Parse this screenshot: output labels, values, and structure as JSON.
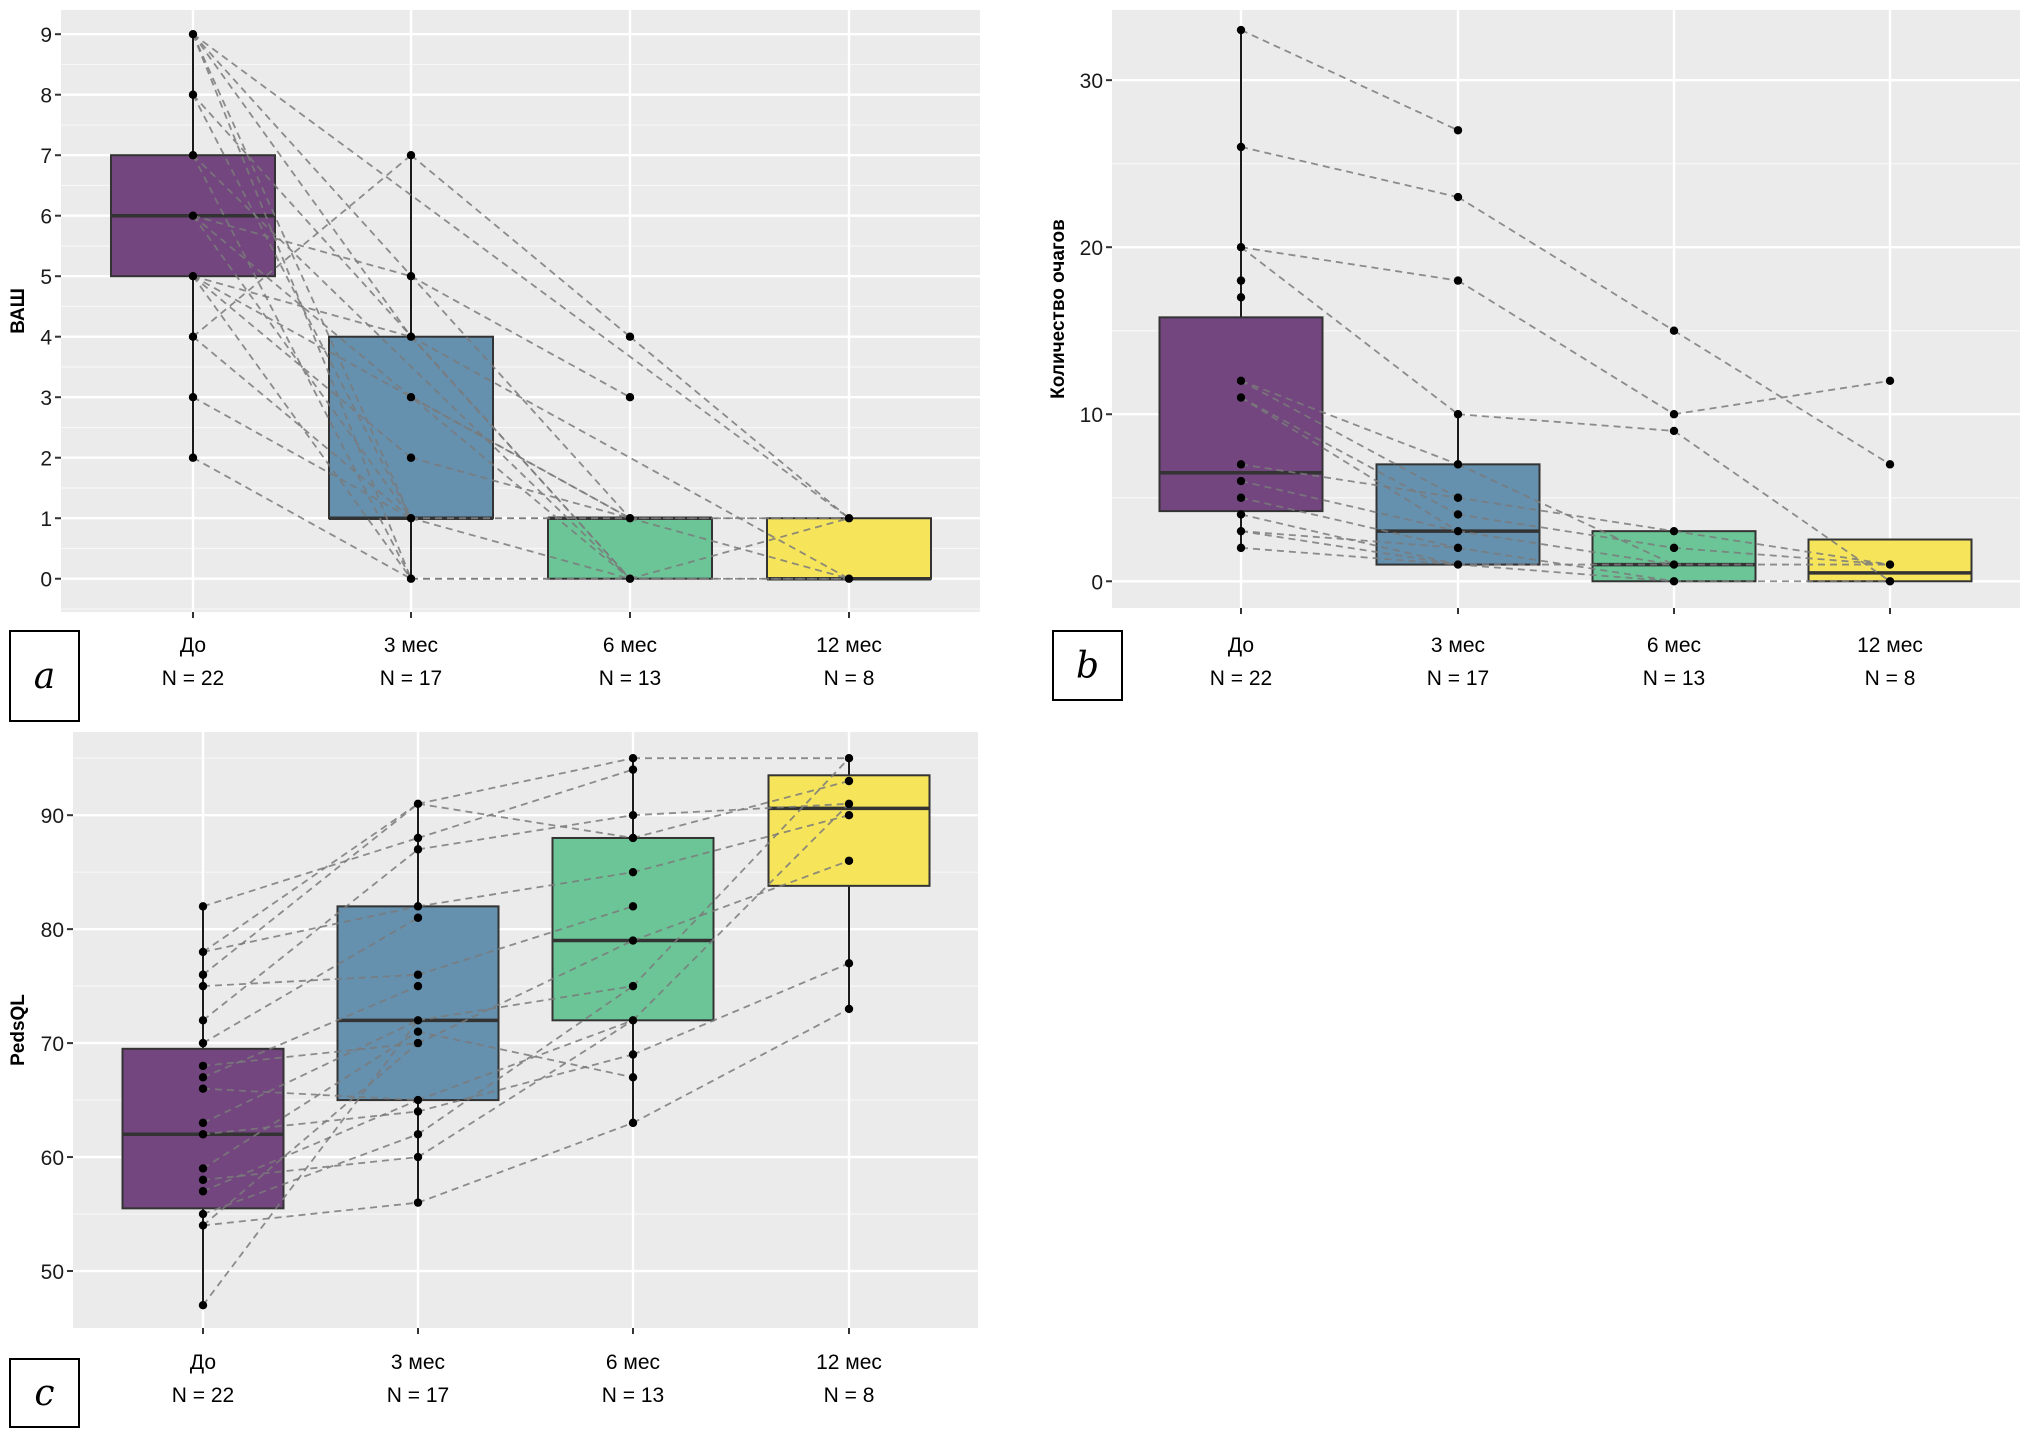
{
  "chart_data": [
    {
      "panel": "a",
      "type": "boxplot",
      "title": "",
      "xlabel": "",
      "ylabel": "ВАШ",
      "ylim": [
        -0.55,
        9.4
      ],
      "yticks": [
        0,
        1,
        2,
        3,
        4,
        5,
        6,
        7,
        8,
        9
      ],
      "grid": true,
      "categories": [
        "До",
        "3 мес",
        "6 мес",
        "12 мес"
      ],
      "n_labels": [
        "N = 22",
        "N = 17",
        "N = 13",
        "N = 8"
      ],
      "colors": [
        "#73467f",
        "#6590ae",
        "#6cc597",
        "#f6e55b"
      ],
      "boxes": [
        {
          "q1": 5,
          "median": 6,
          "q3": 7,
          "whisker_low": 2,
          "whisker_high": 9
        },
        {
          "q1": 1,
          "median": 1,
          "q3": 4,
          "whisker_low": 0,
          "whisker_high": 7
        },
        {
          "q1": 0,
          "median": 1,
          "q3": 1,
          "whisker_low": 0,
          "whisker_high": 1
        },
        {
          "q1": 0,
          "median": 0,
          "q3": 1,
          "whisker_low": 0,
          "whisker_high": 1
        }
      ],
      "points": [
        [
          9,
          8,
          7,
          6,
          5,
          4,
          3,
          2
        ],
        [
          7,
          5,
          4,
          3,
          2,
          1,
          0
        ],
        [
          4,
          3,
          1,
          0
        ],
        [
          1,
          0
        ]
      ],
      "trajectories": [
        [
          0,
          9,
          1,
          4
        ],
        [
          0,
          9,
          1,
          1
        ],
        [
          0,
          9,
          1,
          0
        ],
        [
          0,
          9,
          2,
          1
        ],
        [
          0,
          9,
          3,
          1
        ],
        [
          0,
          8,
          1,
          1
        ],
        [
          0,
          8,
          2,
          0
        ],
        [
          0,
          7,
          1,
          0
        ],
        [
          0,
          7,
          2,
          0
        ],
        [
          0,
          6,
          1,
          5
        ],
        [
          0,
          6,
          1,
          1
        ],
        [
          0,
          6,
          2,
          0
        ],
        [
          0,
          5,
          1,
          4
        ],
        [
          0,
          5,
          1,
          2
        ],
        [
          0,
          5,
          1,
          0
        ],
        [
          0,
          5,
          2,
          1
        ],
        [
          0,
          4,
          1,
          7
        ],
        [
          0,
          4,
          1,
          1
        ],
        [
          0,
          3,
          1,
          1
        ],
        [
          0,
          2,
          1,
          0
        ],
        [
          1,
          7,
          2,
          4
        ],
        [
          1,
          5,
          2,
          3
        ],
        [
          1,
          4,
          2,
          0
        ],
        [
          1,
          4,
          3,
          0
        ],
        [
          1,
          3,
          2,
          1
        ],
        [
          1,
          2,
          2,
          1
        ],
        [
          1,
          1,
          2,
          1
        ],
        [
          1,
          1,
          2,
          0
        ],
        [
          1,
          0,
          2,
          0
        ],
        [
          1,
          1,
          3,
          1
        ],
        [
          1,
          0,
          3,
          0
        ],
        [
          2,
          4,
          3,
          1
        ],
        [
          2,
          1,
          3,
          0
        ],
        [
          2,
          0,
          3,
          1
        ],
        [
          2,
          1,
          3,
          1
        ],
        [
          2,
          0,
          3,
          0
        ]
      ]
    },
    {
      "panel": "b",
      "type": "boxplot",
      "title": "",
      "xlabel": "",
      "ylabel": "Количество очагов",
      "ylim": [
        -1.6,
        34.2
      ],
      "yticks": [
        0,
        10,
        20,
        30
      ],
      "grid": true,
      "categories": [
        "До",
        "3 мес",
        "6 мес",
        "12 мес"
      ],
      "n_labels": [
        "N = 22",
        "N = 17",
        "N = 13",
        "N = 8"
      ],
      "colors": [
        "#73467f",
        "#6590ae",
        "#6cc597",
        "#f6e55b"
      ],
      "boxes": [
        {
          "q1": 4.2,
          "median": 6.5,
          "q3": 15.8,
          "whisker_low": 2,
          "whisker_high": 33
        },
        {
          "q1": 1,
          "median": 3,
          "q3": 7,
          "whisker_low": 1,
          "whisker_high": 10
        },
        {
          "q1": 0,
          "median": 1,
          "q3": 3,
          "whisker_low": 0,
          "whisker_high": 3
        },
        {
          "q1": 0,
          "median": 0.5,
          "q3": 2.5,
          "whisker_low": 0,
          "whisker_high": 1
        }
      ],
      "points": [
        [
          33,
          26,
          20,
          18,
          17,
          12,
          11,
          7,
          6,
          5,
          4,
          3,
          2
        ],
        [
          27,
          23,
          18,
          10,
          7,
          5,
          4,
          3,
          2,
          1
        ],
        [
          15,
          10,
          9,
          3,
          2,
          1,
          0
        ],
        [
          12,
          7,
          1,
          0
        ]
      ],
      "trajectories": [
        [
          0,
          33,
          1,
          27
        ],
        [
          0,
          26,
          1,
          23
        ],
        [
          0,
          20,
          1,
          18
        ],
        [
          0,
          20,
          1,
          10
        ],
        [
          0,
          12,
          1,
          7
        ],
        [
          0,
          12,
          1,
          5
        ],
        [
          0,
          11,
          1,
          4
        ],
        [
          0,
          11,
          1,
          3
        ],
        [
          0,
          7,
          1,
          5
        ],
        [
          0,
          6,
          1,
          3
        ],
        [
          0,
          5,
          1,
          2
        ],
        [
          0,
          4,
          1,
          1
        ],
        [
          0,
          3,
          1,
          2
        ],
        [
          0,
          3,
          1,
          1
        ],
        [
          0,
          2,
          1,
          1
        ],
        [
          1,
          23,
          2,
          15
        ],
        [
          1,
          18,
          2,
          10
        ],
        [
          1,
          10,
          2,
          9
        ],
        [
          1,
          7,
          2,
          1
        ],
        [
          1,
          5,
          2,
          3
        ],
        [
          1,
          4,
          2,
          2
        ],
        [
          1,
          3,
          2,
          1
        ],
        [
          1,
          2,
          2,
          0
        ],
        [
          1,
          1,
          2,
          1
        ],
        [
          1,
          1,
          2,
          0
        ],
        [
          2,
          15,
          3,
          7
        ],
        [
          2,
          10,
          3,
          12
        ],
        [
          2,
          9,
          3,
          0
        ],
        [
          2,
          3,
          3,
          1
        ],
        [
          2,
          2,
          3,
          1
        ],
        [
          2,
          1,
          3,
          1
        ],
        [
          2,
          0,
          3,
          0
        ]
      ]
    },
    {
      "panel": "c",
      "type": "boxplot",
      "title": "",
      "xlabel": "",
      "ylabel": "PedsQL",
      "ylim": [
        45.0,
        97.3
      ],
      "yticks": [
        50,
        60,
        70,
        80,
        90
      ],
      "grid": true,
      "categories": [
        "До",
        "3 мес",
        "6 мес",
        "12 мес"
      ],
      "n_labels": [
        "N = 22",
        "N = 17",
        "N = 13",
        "N = 8"
      ],
      "colors": [
        "#73467f",
        "#6590ae",
        "#6cc597",
        "#f6e55b"
      ],
      "boxes": [
        {
          "q1": 55.5,
          "median": 62,
          "q3": 69.5,
          "whisker_low": 47,
          "whisker_high": 82
        },
        {
          "q1": 65,
          "median": 72,
          "q3": 82,
          "whisker_low": 56,
          "whisker_high": 91
        },
        {
          "q1": 72,
          "median": 79,
          "q3": 88,
          "whisker_low": 63,
          "whisker_high": 95
        },
        {
          "q1": 83.8,
          "median": 90.6,
          "q3": 93.5,
          "whisker_low": 73,
          "whisker_high": 95
        }
      ],
      "points": [
        [
          82,
          78,
          76,
          75,
          72,
          70,
          68,
          67,
          66,
          63,
          62,
          59,
          58,
          57,
          55,
          54,
          47
        ],
        [
          91,
          88,
          87,
          82,
          81,
          76,
          75,
          72,
          71,
          70,
          65,
          64,
          62,
          60,
          56
        ],
        [
          95,
          94,
          90,
          88,
          85,
          82,
          79,
          75,
          72,
          69,
          67,
          63
        ],
        [
          95,
          93,
          91,
          90,
          86,
          77,
          73
        ]
      ],
      "trajectories": [
        [
          0,
          82,
          1,
          88
        ],
        [
          0,
          78,
          1,
          91
        ],
        [
          0,
          78,
          1,
          82
        ],
        [
          0,
          76,
          1,
          91
        ],
        [
          0,
          75,
          1,
          76
        ],
        [
          0,
          72,
          1,
          87
        ],
        [
          0,
          70,
          1,
          81
        ],
        [
          0,
          68,
          1,
          70
        ],
        [
          0,
          67,
          1,
          75
        ],
        [
          0,
          66,
          1,
          65
        ],
        [
          0,
          63,
          1,
          72
        ],
        [
          0,
          62,
          1,
          64
        ],
        [
          0,
          59,
          1,
          71
        ],
        [
          0,
          58,
          1,
          60
        ],
        [
          0,
          57,
          1,
          65
        ],
        [
          0,
          55,
          1,
          62
        ],
        [
          0,
          54,
          1,
          56
        ],
        [
          0,
          54,
          1,
          70
        ],
        [
          0,
          47,
          1,
          72
        ],
        [
          1,
          91,
          2,
          95
        ],
        [
          1,
          91,
          2,
          88
        ],
        [
          1,
          88,
          2,
          94
        ],
        [
          1,
          87,
          2,
          90
        ],
        [
          1,
          82,
          2,
          85
        ],
        [
          1,
          76,
          2,
          82
        ],
        [
          1,
          72,
          2,
          75
        ],
        [
          1,
          71,
          2,
          67
        ],
        [
          1,
          70,
          2,
          79
        ],
        [
          1,
          65,
          2,
          72
        ],
        [
          1,
          64,
          2,
          69
        ],
        [
          1,
          62,
          2,
          75
        ],
        [
          1,
          60,
          2,
          72
        ],
        [
          1,
          56,
          2,
          63
        ],
        [
          2,
          95,
          3,
          95
        ],
        [
          2,
          90,
          3,
          91
        ],
        [
          2,
          88,
          3,
          93
        ],
        [
          2,
          85,
          3,
          90
        ],
        [
          2,
          79,
          3,
          86
        ],
        [
          2,
          75,
          3,
          95
        ],
        [
          2,
          72,
          3,
          91
        ],
        [
          2,
          69,
          3,
          77
        ],
        [
          2,
          63,
          3,
          73
        ]
      ]
    }
  ]
}
